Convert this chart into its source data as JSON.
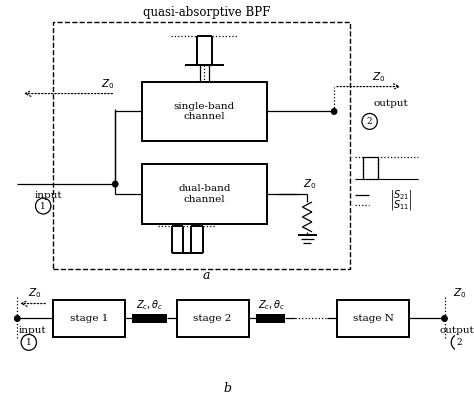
{
  "bg_color": "#ffffff",
  "title_text": "quasi-absorptive BPF",
  "label_a": "a",
  "label_b": "b",
  "fig_width": 4.74,
  "fig_height": 3.96,
  "dpi": 100,
  "font_size": 8.5,
  "font_size_small": 7.5,
  "font_size_label": 9,
  "Z0_label": "$Z_0$",
  "input_label": "input",
  "output_label": "output",
  "single_band_label": "single-band\nchannel",
  "dual_band_label": "dual-band\nchannel",
  "stage1_label": "stage 1",
  "stage2_label": "stage 2",
  "stageN_label": "stage N",
  "Zc_theta_label": "$Z_c, \\theta_c$",
  "S21_label": "$|S_{21}|$",
  "S11_label": "$|S_{11}|$"
}
